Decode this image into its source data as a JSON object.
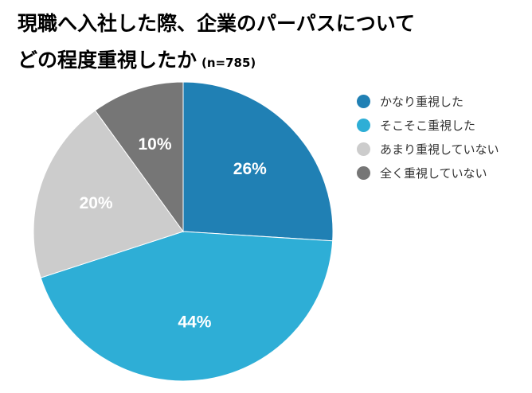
{
  "title": {
    "line1": "現職へ入社した際、企業のパーパスについて",
    "line2": "どの程度重視したか",
    "sample": "(n=785)"
  },
  "chart_data": {
    "type": "pie",
    "start": "12 o'clock",
    "direction": "clockwise",
    "slices": [
      {
        "name": "かなり重視した",
        "value": 26,
        "label": "26%",
        "color": "#2080b4"
      },
      {
        "name": "そこそこ重視した",
        "value": 44,
        "label": "44%",
        "color": "#2eaed6"
      },
      {
        "name": "あまり重視していない",
        "value": 20,
        "label": "20%",
        "color": "#cccccc"
      },
      {
        "name": "全く重視していない",
        "value": 10,
        "label": "10%",
        "color": "#767676"
      }
    ],
    "legend_position": "right"
  }
}
